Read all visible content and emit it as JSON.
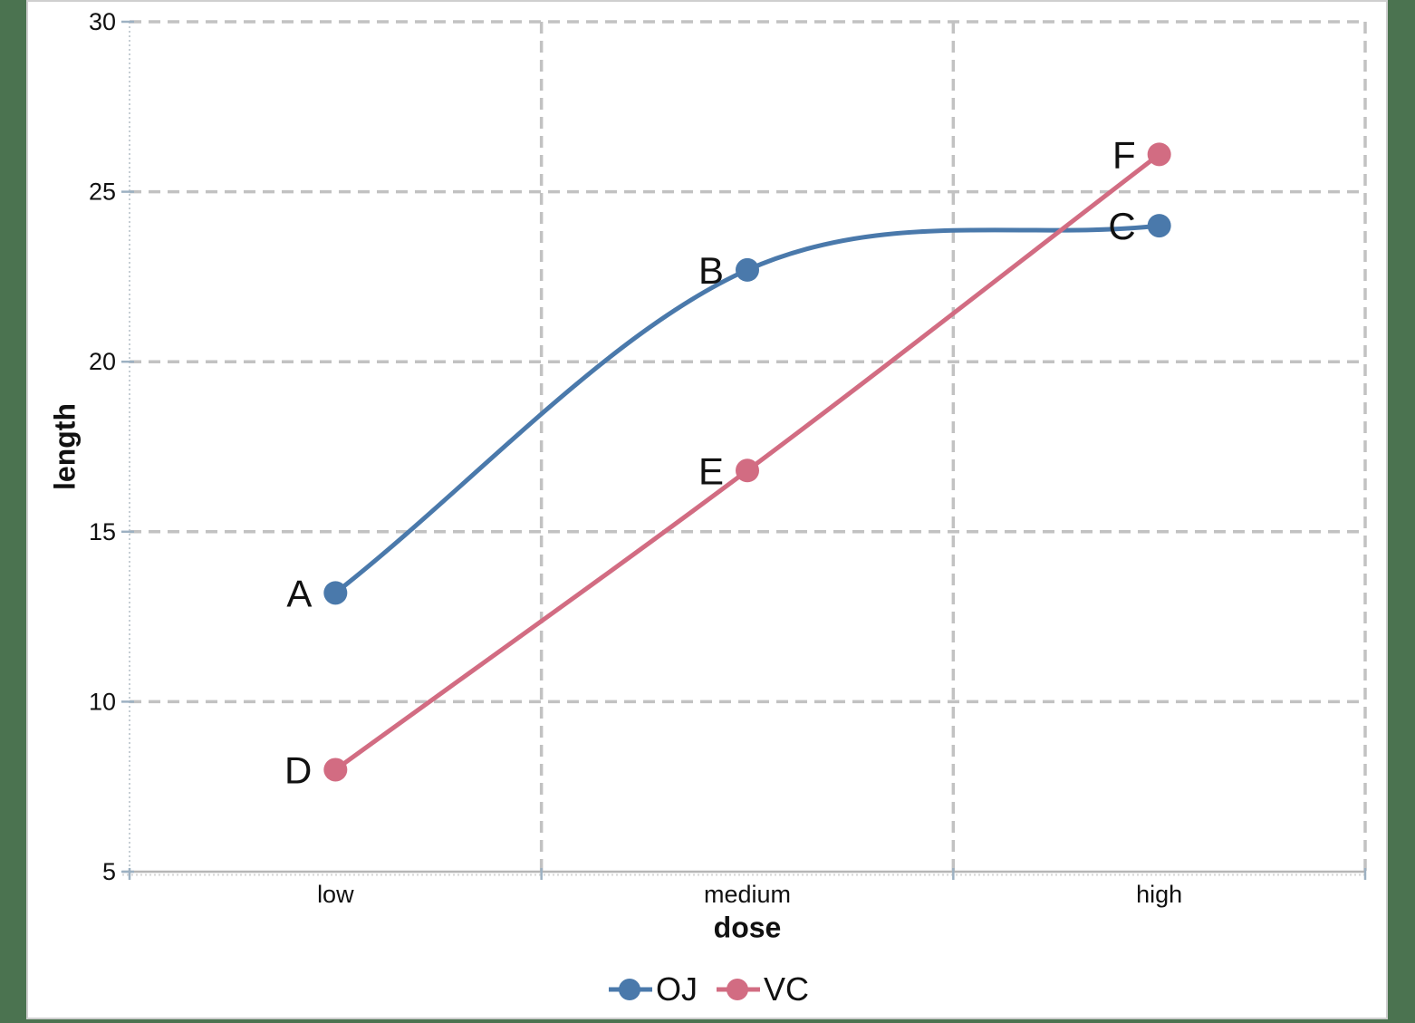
{
  "chart_data": {
    "type": "line",
    "categories": [
      "low",
      "medium",
      "high"
    ],
    "series": [
      {
        "name": "OJ",
        "color": "#4a79ab",
        "values": [
          13.2,
          22.7,
          24.0
        ],
        "point_labels": [
          "A",
          "B",
          "C"
        ]
      },
      {
        "name": "VC",
        "color": "#d26c82",
        "values": [
          8.0,
          16.8,
          26.1
        ],
        "point_labels": [
          "D",
          "E",
          "F"
        ]
      }
    ],
    "title": "",
    "xlabel": "dose",
    "ylabel": "length",
    "ylim": [
      5,
      30
    ],
    "yticks": [
      5,
      10,
      15,
      20,
      25,
      30
    ],
    "grid": {
      "horizontal": "dashed at each y tick",
      "vertical": "dashed at category band boundaries"
    },
    "smooth": true,
    "point_label_position": "left-of-marker",
    "legend_position": "bottom-center"
  },
  "legend": {
    "items": [
      {
        "label": "OJ",
        "color": "#4a79ab"
      },
      {
        "label": "VC",
        "color": "#d26c82"
      }
    ]
  },
  "colors": {
    "page_background": "#4b7350",
    "card_background": "#ffffff",
    "card_border": "#cfcfcf",
    "gridline": "#c2c2c2",
    "x_axis_line": "#b6b6b6",
    "y_axis_line": "#c6ced4",
    "tick": "#9db1c2",
    "text": "#111111"
  }
}
